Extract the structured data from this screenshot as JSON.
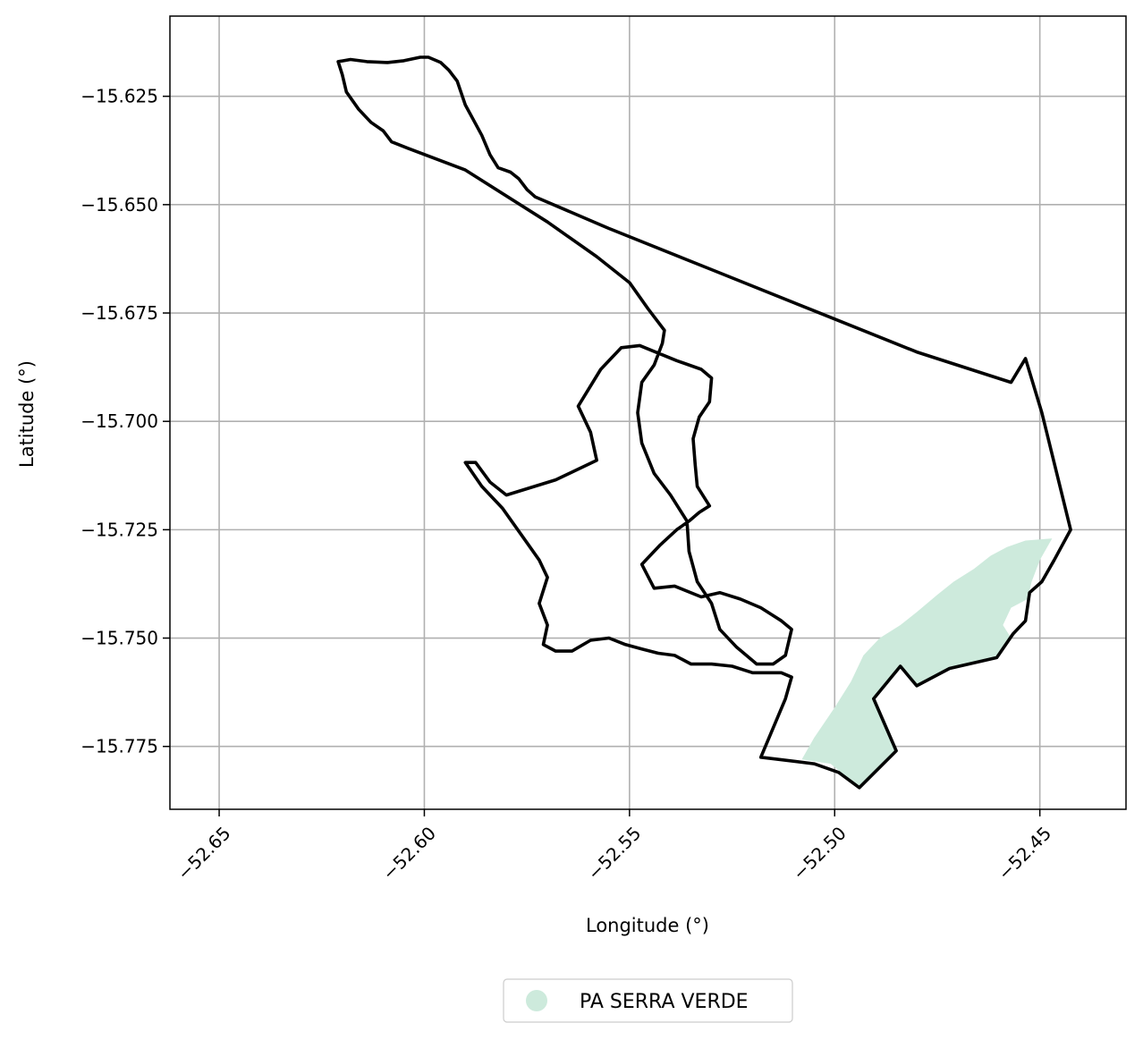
{
  "map": {
    "xlabel": "Longitude (°)",
    "ylabel": "Latitude (°)",
    "xlim": [
      -52.662,
      -52.429
    ],
    "ylim": [
      -15.7895,
      -15.6065
    ],
    "grid": true,
    "x_ticks": [
      {
        "value": -52.65,
        "label": "−52.65"
      },
      {
        "value": -52.6,
        "label": "−52.60"
      },
      {
        "value": -52.55,
        "label": "−52.55"
      },
      {
        "value": -52.5,
        "label": "−52.50"
      },
      {
        "value": -52.45,
        "label": "−52.45"
      }
    ],
    "y_ticks": [
      {
        "value": -15.625,
        "label": "−15.625"
      },
      {
        "value": -15.65,
        "label": "−15.650"
      },
      {
        "value": -15.675,
        "label": "−15.675"
      },
      {
        "value": -15.7,
        "label": "−15.700"
      },
      {
        "value": -15.725,
        "label": "−15.725"
      },
      {
        "value": -15.75,
        "label": "−15.750"
      },
      {
        "value": -15.775,
        "label": "−15.775"
      }
    ],
    "legend": {
      "placement": "bottom-center",
      "entries": [
        {
          "label": "PA SERRA VERDE",
          "color": "#cdeadc"
        }
      ]
    },
    "colors": {
      "boundary": "#000000",
      "area": "#cdeadc",
      "grid": "#b0b0b0"
    },
    "boundary": [
      [
        -52.621,
        -15.617
      ],
      [
        -52.618,
        -15.6165
      ],
      [
        -52.614,
        -15.617
      ],
      [
        -52.609,
        -15.6172
      ],
      [
        -52.605,
        -15.6168
      ],
      [
        -52.601,
        -15.616
      ],
      [
        -52.599,
        -15.616
      ],
      [
        -52.596,
        -15.6172
      ],
      [
        -52.594,
        -15.619
      ],
      [
        -52.592,
        -15.6215
      ],
      [
        -52.59,
        -15.627
      ],
      [
        -52.588,
        -15.6305
      ],
      [
        -52.586,
        -15.634
      ],
      [
        -52.584,
        -15.6385
      ],
      [
        -52.582,
        -15.6415
      ],
      [
        -52.579,
        -15.6425
      ],
      [
        -52.577,
        -15.644
      ],
      [
        -52.575,
        -15.6465
      ],
      [
        -52.573,
        -15.6482
      ],
      [
        -52.555,
        -15.6555
      ],
      [
        -52.53,
        -15.665
      ],
      [
        -52.505,
        -15.6745
      ],
      [
        -52.48,
        -15.684
      ],
      [
        -52.457,
        -15.691
      ],
      [
        -52.4535,
        -15.6855
      ],
      [
        -52.4495,
        -15.698
      ],
      [
        -52.4425,
        -15.725
      ],
      [
        -52.4445,
        -15.7285
      ],
      [
        -52.4465,
        -15.732
      ],
      [
        -52.4495,
        -15.737
      ],
      [
        -52.4525,
        -15.7395
      ],
      [
        -52.4535,
        -15.746
      ],
      [
        -52.4565,
        -15.749
      ],
      [
        -52.4605,
        -15.7545
      ],
      [
        -52.472,
        -15.757
      ],
      [
        -52.48,
        -15.761
      ],
      [
        -52.484,
        -15.7565
      ],
      [
        -52.4905,
        -15.764
      ],
      [
        -52.485,
        -15.776
      ],
      [
        -52.494,
        -15.7845
      ],
      [
        -52.499,
        -15.781
      ],
      [
        -52.505,
        -15.779
      ],
      [
        -52.518,
        -15.7775
      ],
      [
        -52.512,
        -15.764
      ],
      [
        -52.5105,
        -15.759
      ],
      [
        -52.513,
        -15.758
      ],
      [
        -52.52,
        -15.758
      ],
      [
        -52.525,
        -15.7565
      ],
      [
        -52.53,
        -15.756
      ],
      [
        -52.535,
        -15.756
      ],
      [
        -52.539,
        -15.754
      ],
      [
        -52.543,
        -15.7535
      ],
      [
        -52.547,
        -15.7525
      ],
      [
        -52.551,
        -15.7515
      ],
      [
        -52.555,
        -15.75
      ],
      [
        -52.5595,
        -15.7505
      ],
      [
        -52.564,
        -15.753
      ],
      [
        -52.568,
        -15.753
      ],
      [
        -52.571,
        -15.7515
      ],
      [
        -52.57,
        -15.747
      ],
      [
        -52.572,
        -15.742
      ],
      [
        -52.57,
        -15.736
      ],
      [
        -52.572,
        -15.732
      ],
      [
        -52.575,
        -15.728
      ],
      [
        -52.581,
        -15.72
      ],
      [
        -52.586,
        -15.715
      ],
      [
        -52.59,
        -15.7095
      ],
      [
        -52.5875,
        -15.7095
      ],
      [
        -52.584,
        -15.714
      ],
      [
        -52.58,
        -15.717
      ],
      [
        -52.568,
        -15.7135
      ],
      [
        -52.558,
        -15.709
      ],
      [
        -52.5595,
        -15.7025
      ],
      [
        -52.5625,
        -15.6965
      ],
      [
        -52.557,
        -15.688
      ],
      [
        -52.552,
        -15.683
      ],
      [
        -52.5475,
        -15.6825
      ],
      [
        -52.5385,
        -15.686
      ],
      [
        -52.5325,
        -15.688
      ],
      [
        -52.53,
        -15.69
      ],
      [
        -52.5305,
        -15.6955
      ],
      [
        -52.533,
        -15.699
      ],
      [
        -52.5345,
        -15.704
      ],
      [
        -52.534,
        -15.71
      ],
      [
        -52.5335,
        -15.715
      ],
      [
        -52.5305,
        -15.7195
      ],
      [
        -52.533,
        -15.721
      ],
      [
        -52.5355,
        -15.723
      ],
      [
        -52.5385,
        -15.725
      ],
      [
        -52.5425,
        -15.7285
      ],
      [
        -52.547,
        -15.733
      ],
      [
        -52.544,
        -15.7385
      ],
      [
        -52.539,
        -15.738
      ],
      [
        -52.5325,
        -15.7405
      ],
      [
        -52.528,
        -15.7395
      ],
      [
        -52.523,
        -15.741
      ],
      [
        -52.518,
        -15.743
      ],
      [
        -52.5155,
        -15.7445
      ],
      [
        -52.513,
        -15.746
      ],
      [
        -52.5105,
        -15.748
      ],
      [
        -52.512,
        -15.754
      ],
      [
        -52.515,
        -15.756
      ],
      [
        -52.519,
        -15.756
      ],
      [
        -52.524,
        -15.752
      ],
      [
        -52.528,
        -15.748
      ],
      [
        -52.53,
        -15.742
      ],
      [
        -52.5335,
        -15.737
      ],
      [
        -52.5355,
        -15.73
      ],
      [
        -52.536,
        -15.723
      ],
      [
        -52.54,
        -15.717
      ],
      [
        -52.544,
        -15.712
      ],
      [
        -52.547,
        -15.705
      ],
      [
        -52.548,
        -15.698
      ],
      [
        -52.547,
        -15.691
      ],
      [
        -52.544,
        -15.687
      ],
      [
        -52.542,
        -15.682
      ],
      [
        -52.5415,
        -15.679
      ],
      [
        -52.5455,
        -15.674
      ],
      [
        -52.55,
        -15.668
      ],
      [
        -52.558,
        -15.662
      ],
      [
        -52.57,
        -15.654
      ],
      [
        -52.59,
        -15.642
      ],
      [
        -52.604,
        -15.637
      ],
      [
        -52.608,
        -15.6355
      ],
      [
        -52.61,
        -15.633
      ],
      [
        -52.613,
        -15.631
      ],
      [
        -52.616,
        -15.628
      ],
      [
        -52.619,
        -15.624
      ],
      [
        -52.62,
        -15.62
      ]
    ],
    "protected_area": [
      [
        -52.447,
        -15.727
      ],
      [
        -52.4535,
        -15.7275
      ],
      [
        -52.458,
        -15.729
      ],
      [
        -52.462,
        -15.731
      ],
      [
        -52.466,
        -15.734
      ],
      [
        -52.471,
        -15.737
      ],
      [
        -52.475,
        -15.74
      ],
      [
        -52.48,
        -15.744
      ],
      [
        -52.484,
        -15.747
      ],
      [
        -52.489,
        -15.75
      ],
      [
        -52.493,
        -15.754
      ],
      [
        -52.496,
        -15.76
      ],
      [
        -52.5,
        -15.766
      ],
      [
        -52.505,
        -15.773
      ],
      [
        -52.508,
        -15.778
      ],
      [
        -52.501,
        -15.779
      ],
      [
        -52.494,
        -15.7845
      ],
      [
        -52.485,
        -15.776
      ],
      [
        -52.4905,
        -15.764
      ],
      [
        -52.484,
        -15.7565
      ],
      [
        -52.48,
        -15.761
      ],
      [
        -52.472,
        -15.757
      ],
      [
        -52.4605,
        -15.7545
      ],
      [
        -52.457,
        -15.75
      ],
      [
        -52.459,
        -15.747
      ],
      [
        -52.457,
        -15.743
      ],
      [
        -52.453,
        -15.741
      ],
      [
        -52.452,
        -15.737
      ],
      [
        -52.45,
        -15.732
      ]
    ]
  }
}
